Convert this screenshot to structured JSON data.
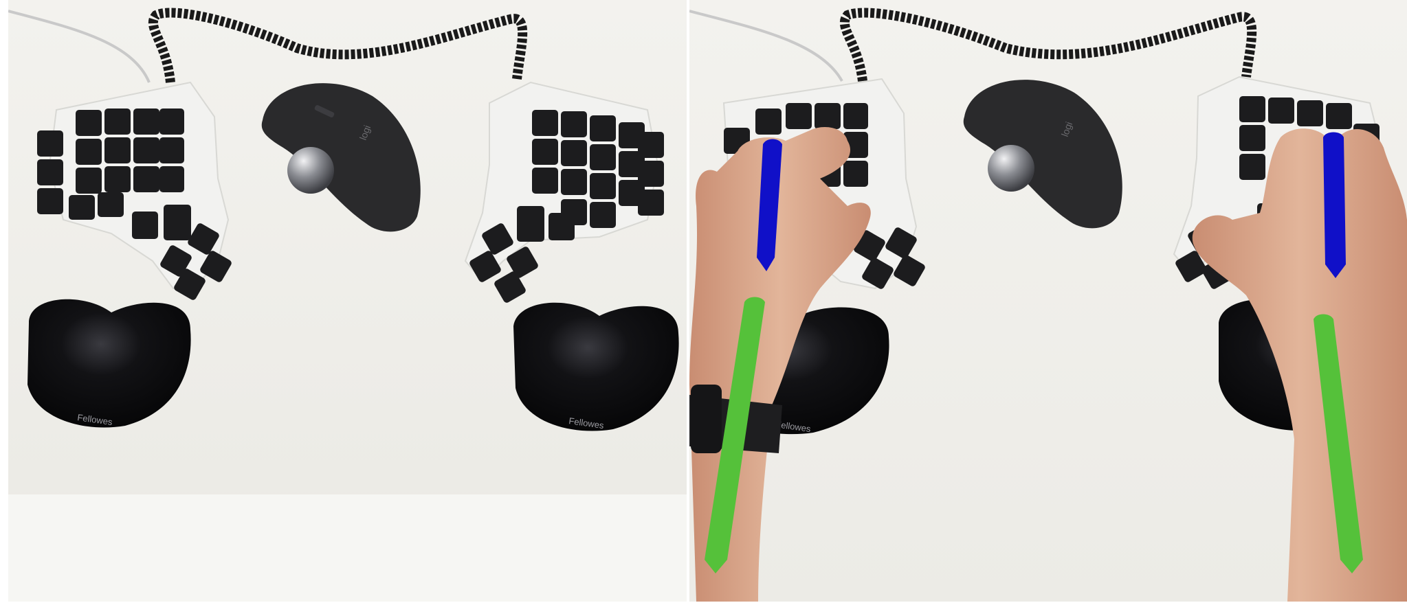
{
  "image": {
    "layout": "side-by-side comparison photos",
    "panels": [
      {
        "id": "left",
        "scene": "split ergonomic keyboard halves with trackball mouse and wrist rests, no hands"
      },
      {
        "id": "right",
        "scene": "same setup with both hands on the keyboard halves, colored alignment lines drawn over hands and forearms"
      }
    ]
  },
  "brand_text": {
    "mouse": "logi",
    "wrist_rest": "Fellowes"
  },
  "overlay_colors": {
    "hand_line": "#1010c8",
    "forearm_line": "#55c13a"
  },
  "colors": {
    "desk": "#efeeea",
    "keyboard_case": "#f2f2f0",
    "keycap": "#1c1c1e",
    "wrist_rest": "#0d0d10",
    "mouse": "#2a2a2c",
    "cable": "#1a1a1a",
    "skin": "#d9a58a"
  }
}
